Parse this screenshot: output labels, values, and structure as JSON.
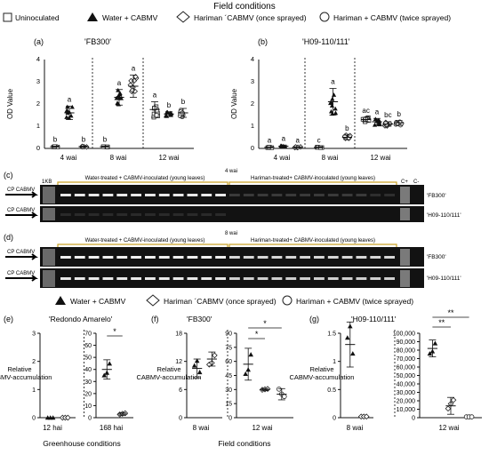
{
  "header": {
    "title": "Field conditions"
  },
  "legend_top": [
    {
      "label": "Uninoculated",
      "marker": "square"
    },
    {
      "label": "Water + CABMV",
      "marker": "triangle"
    },
    {
      "label": "Hariman ´CABMV (once sprayed)",
      "marker": "diamond"
    },
    {
      "label": "Hariman + CABMV (twice sprayed)",
      "marker": "circle"
    }
  ],
  "legend_mid": [
    {
      "label": "Water + CABMV",
      "marker": "triangle"
    },
    {
      "label": "Hariman ´CABMV (once sprayed)",
      "marker": "diamond"
    },
    {
      "label": "Hariman + CABMV (twice sprayed)",
      "marker": "circle"
    }
  ],
  "footer": {
    "left_caption": "Greenhouse conditions",
    "center_caption": "Field conditions"
  },
  "gels": {
    "c": {
      "panel": "(c)",
      "ladder": "1KB",
      "time": "4 wai",
      "bracket_water": "Water-treated + CABMV-inoculated (young leaves)",
      "bracket_hariman": "Hariman-treated+ CABMV-inoculated (young leaves)",
      "controls": [
        "C+",
        "C-"
      ],
      "rows": [
        {
          "arrow": "CP CABMV",
          "cultivar": "'FB300'"
        },
        {
          "arrow": "CP CABMV",
          "cultivar": "'H09-110/111'"
        }
      ]
    },
    "d": {
      "panel": "(d)",
      "time": "8 wai",
      "bracket_water": "Water-treated + CABMV-inoculated (young leaves)",
      "bracket_hariman": "Hariman-treated+ CABMV-inoculated (young leaves)",
      "rows": [
        {
          "arrow": "CP CABMV",
          "cultivar": "'FB300'"
        },
        {
          "arrow": "CP CABMV",
          "cultivar": "'H09-110/111'"
        }
      ]
    }
  },
  "chart_data": [
    {
      "panel": "(a)",
      "type": "scatter",
      "title": "'FB300'",
      "ylabel": "OD Value",
      "ylim": [
        0,
        4
      ],
      "yticks": [
        0,
        1,
        2,
        3,
        4
      ],
      "categories": [
        "4 wai",
        "8 wai",
        "12 wai"
      ],
      "groups": [
        {
          "series": "Uninoculated",
          "category": "4 wai",
          "mean": 0.08,
          "sd": 0.02,
          "letter": "b"
        },
        {
          "series": "Water + CABMV",
          "category": "4 wai",
          "mean": 1.6,
          "sd": 0.3,
          "letter": "a"
        },
        {
          "series": "Hariman ´CABMV (once sprayed)",
          "category": "4 wai",
          "mean": 0.08,
          "sd": 0.02,
          "letter": "b"
        },
        {
          "series": "Uninoculated",
          "category": "8 wai",
          "mean": 0.08,
          "sd": 0.02,
          "letter": "b"
        },
        {
          "series": "Water + CABMV",
          "category": "8 wai",
          "mean": 2.3,
          "sd": 0.35,
          "letter": "a"
        },
        {
          "series": "Hariman ´CABMV (once sprayed)",
          "category": "8 wai",
          "mean": 2.8,
          "sd": 0.5,
          "letter": "a"
        },
        {
          "series": "Uninoculated",
          "category": "12 wai",
          "mean": 1.75,
          "sd": 0.35,
          "letter": "a"
        },
        {
          "series": "Water + CABMV",
          "category": "12 wai",
          "mean": 1.55,
          "sd": 0.1,
          "letter": "b"
        },
        {
          "series": "Hariman + CABMV (twice sprayed)",
          "category": "12 wai",
          "mean": 1.6,
          "sd": 0.2,
          "letter": "b"
        }
      ]
    },
    {
      "panel": "(b)",
      "type": "scatter",
      "title": "'H09-110/111'",
      "ylabel": "OD Value",
      "ylim": [
        0,
        4
      ],
      "yticks": [
        0,
        1,
        2,
        3,
        4
      ],
      "categories": [
        "4 wai",
        "8 wai",
        "12 wai"
      ],
      "groups": [
        {
          "series": "Uninoculated",
          "category": "4 wai",
          "mean": 0.05,
          "sd": 0.02,
          "letter": "a"
        },
        {
          "series": "Water + CABMV",
          "category": "4 wai",
          "mean": 0.1,
          "sd": 0.05,
          "letter": "a"
        },
        {
          "series": "Hariman ´CABMV (once sprayed)",
          "category": "4 wai",
          "mean": 0.05,
          "sd": 0.02,
          "letter": "a"
        },
        {
          "series": "Uninoculated",
          "category": "8 wai",
          "mean": 0.05,
          "sd": 0.02,
          "letter": "c"
        },
        {
          "series": "Water + CABMV",
          "category": "8 wai",
          "mean": 2.1,
          "sd": 0.6,
          "letter": "a"
        },
        {
          "series": "Hariman ´CABMV (once sprayed)",
          "category": "8 wai",
          "mean": 0.5,
          "sd": 0.1,
          "letter": "b"
        },
        {
          "series": "Uninoculated",
          "category": "12 wai",
          "mean": 1.3,
          "sd": 0.1,
          "letter": "ac"
        },
        {
          "series": "Water + CABMV",
          "category": "12 wai",
          "mean": 1.2,
          "sd": 0.15,
          "letter": "a"
        },
        {
          "series": "Hariman ´CABMV (once sprayed)",
          "category": "12 wai",
          "mean": 1.1,
          "sd": 0.1,
          "letter": "bc"
        },
        {
          "series": "Hariman + CABMV (twice sprayed)",
          "category": "12 wai",
          "mean": 1.15,
          "sd": 0.1,
          "letter": "b"
        }
      ]
    },
    {
      "panel": "(e)",
      "type": "scatter",
      "title": "'Redondo Amarelo'",
      "ylabel": "Relative CABMV-accumulation",
      "left": {
        "category": "12 hai",
        "ylim": [
          0,
          3
        ],
        "yticks": [
          0,
          1,
          2,
          3
        ]
      },
      "right": {
        "category": "168 hai",
        "ylim": [
          0,
          70
        ],
        "yticks": [
          0,
          10,
          20,
          30,
          40,
          50,
          60,
          70
        ]
      },
      "groups": [
        {
          "series": "Water + CABMV",
          "category": "12 hai",
          "mean": 0
        },
        {
          "series": "Hariman ´CABMV (once sprayed)",
          "category": "12 hai",
          "mean": 0
        },
        {
          "series": "Water + CABMV",
          "category": "168 hai",
          "mean": 40,
          "sd": 8
        },
        {
          "series": "Hariman ´CABMV (once sprayed)",
          "category": "168 hai",
          "mean": 3,
          "sd": 1
        }
      ],
      "significance": [
        "*"
      ]
    },
    {
      "panel": "(f)",
      "type": "scatter",
      "title": "'FB300'",
      "ylabel": "Relative CABMV-accumulation",
      "left": {
        "category": "8 wai",
        "ylim": [
          0,
          18
        ],
        "yticks": [
          0,
          6,
          12,
          18
        ]
      },
      "right": {
        "category": "12 wai",
        "ylim": [
          0,
          90
        ],
        "yticks": [
          0,
          15,
          30,
          45,
          60,
          75,
          90
        ]
      },
      "groups": [
        {
          "series": "Water + CABMV",
          "category": "8 wai",
          "mean": 10.5,
          "sd": 2
        },
        {
          "series": "Hariman ´CABMV (once sprayed)",
          "category": "8 wai",
          "mean": 12.5,
          "sd": 1.5
        },
        {
          "series": "Water + CABMV",
          "category": "12 wai",
          "mean": 57,
          "sd": 17
        },
        {
          "series": "Hariman ´CABMV (once sprayed)",
          "category": "12 wai",
          "mean": 30,
          "sd": 1
        },
        {
          "series": "Hariman + CABMV (twice sprayed)",
          "category": "12 wai",
          "mean": 25,
          "sd": 6
        }
      ],
      "significance": [
        "*",
        "*"
      ]
    },
    {
      "panel": "(g)",
      "type": "scatter",
      "title": "'H09-110/111'",
      "ylabel": "Relative CABMV-accumulation",
      "left": {
        "category": "8 wai",
        "ylim": [
          0,
          1.5
        ],
        "yticks": [
          0,
          0.5,
          1,
          1.5
        ]
      },
      "right": {
        "category": "12 wai",
        "ylim": [
          0,
          100000
        ],
        "yticks": [
          0,
          10000,
          20000,
          30000,
          40000,
          50000,
          60000,
          70000,
          80000,
          90000,
          100000
        ]
      },
      "groups": [
        {
          "series": "Water + CABMV",
          "category": "8 wai",
          "mean": 1.3,
          "sd": 0.4
        },
        {
          "series": "Hariman ´CABMV (once sprayed)",
          "category": "8 wai",
          "mean": 0.02
        },
        {
          "series": "Water + CABMV",
          "category": "12 wai",
          "mean": 82000,
          "sd": 10000
        },
        {
          "series": "Hariman ´CABMV (once sprayed)",
          "category": "12 wai",
          "mean": 14000,
          "sd": 10000
        },
        {
          "series": "Hariman + CABMV (twice sprayed)",
          "category": "12 wai",
          "mean": 1000
        }
      ],
      "significance": [
        "**",
        "**"
      ]
    }
  ]
}
